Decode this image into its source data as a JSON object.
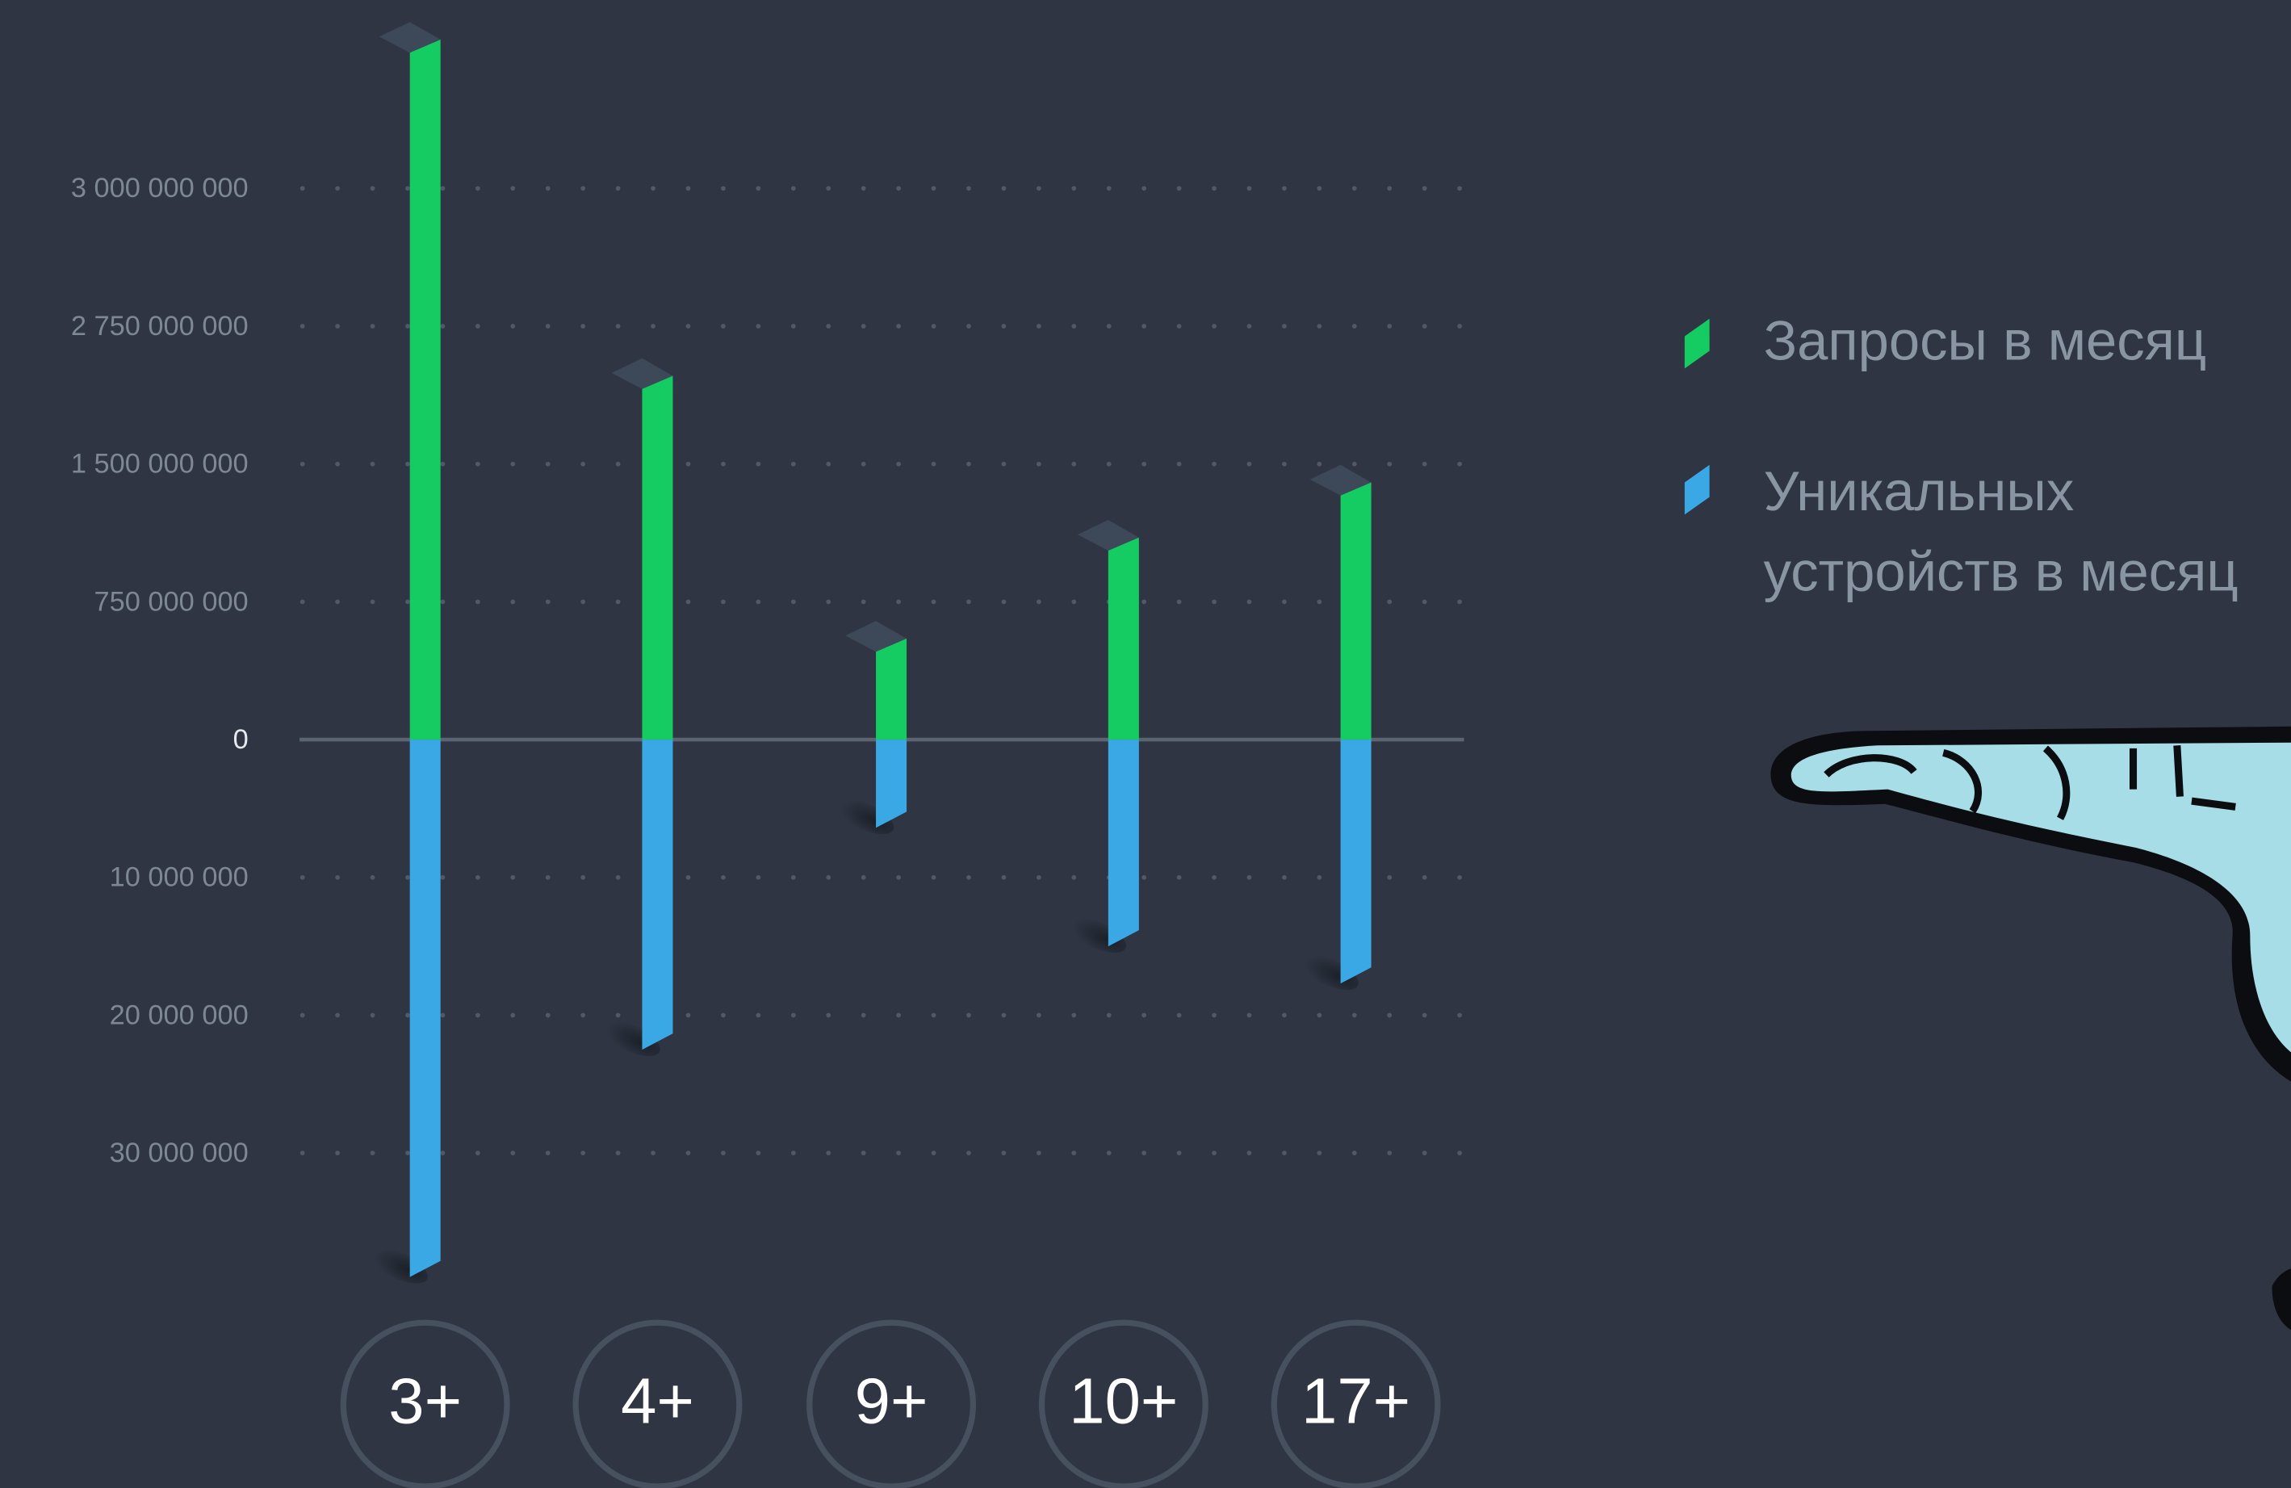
{
  "chart_data": {
    "type": "bar",
    "categories": [
      "3+",
      "4+",
      "9+",
      "10+",
      "17+"
    ],
    "series": [
      {
        "name": "Запросы в месяц",
        "color": "#14cc62",
        "values": [
          3270000000,
          2300000000,
          550000000,
          1100000000,
          1400000000
        ]
      },
      {
        "name": "Уникальных устройств в месяц",
        "color": "#3aa8e5",
        "axis": "y2",
        "values": [
          39000000,
          22500000,
          6400000,
          15000000,
          17700000
        ]
      }
    ],
    "ylim": [
      0,
      3300000000
    ],
    "yticks": [
      0,
      {
        "value": 750000000,
        "label": "750 000 000"
      },
      {
        "value": 1500000000,
        "label": "1 500 000 000"
      },
      {
        "value": 2750000000,
        "label": "2 750 000 000"
      },
      {
        "value": 3000000000,
        "label": "3 000 000 000"
      }
    ],
    "y2lim": [
      0,
      40000000
    ],
    "y2ticks": [
      {
        "value": 10000000,
        "label": "10 000 000"
      },
      {
        "value": 20000000,
        "label": "20 000 000"
      },
      {
        "value": 30000000,
        "label": "30 000 000"
      }
    ],
    "grid": true
  }
}
